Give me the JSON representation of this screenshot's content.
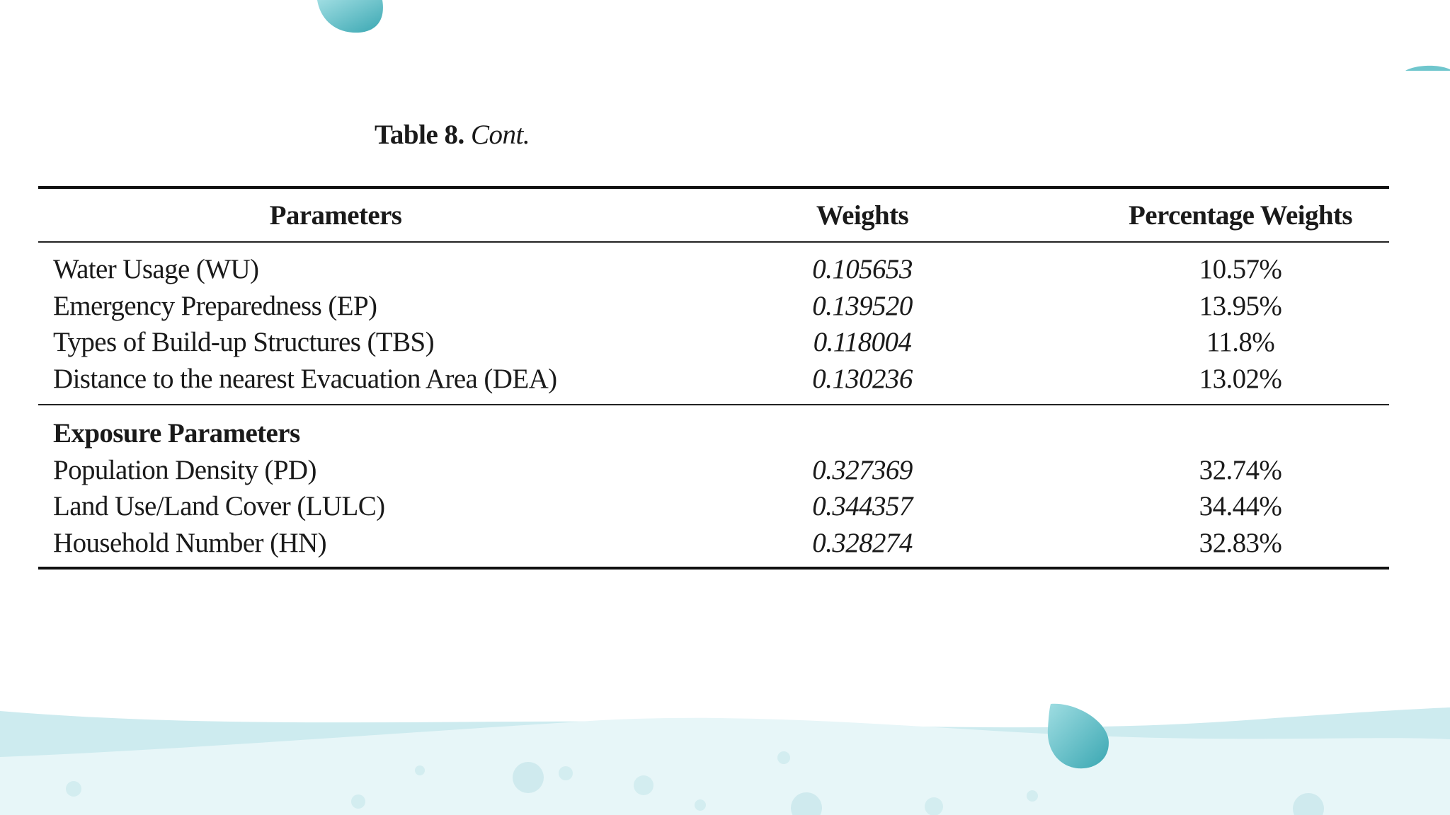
{
  "caption": {
    "label": "Table 8.",
    "continuation": "Cont."
  },
  "table": {
    "headers": [
      "Parameters",
      "Weights",
      "Percentage Weights"
    ],
    "upper_rows": [
      {
        "parameter": "Water Usage (WU)",
        "weight": "0.105653",
        "percentage": "10.57%"
      },
      {
        "parameter": "Emergency Preparedness (EP)",
        "weight": "0.139520",
        "percentage": "13.95%"
      },
      {
        "parameter": "Types of Build-up Structures (TBS)",
        "weight": "0.118004",
        "percentage": "11.8%"
      },
      {
        "parameter": "Distance to the nearest Evacuation Area (DEA)",
        "weight": "0.130236",
        "percentage": "13.02%"
      }
    ],
    "section_title": "Exposure Parameters",
    "lower_rows": [
      {
        "parameter": "Population Density (PD)",
        "weight": "0.327369",
        "percentage": "32.74%"
      },
      {
        "parameter": "Land Use/Land Cover (LULC)",
        "weight": "0.344357",
        "percentage": "34.44%"
      },
      {
        "parameter": "Household Number (HN)",
        "weight": "0.328274",
        "percentage": "32.83%"
      }
    ]
  },
  "colors": {
    "wave_light": "#e8f6f8",
    "wave_mid": "#cbeaef",
    "drop": "#5fbfc7",
    "drop_dark": "#3aa7b2",
    "bubble": "#d4eef1"
  }
}
